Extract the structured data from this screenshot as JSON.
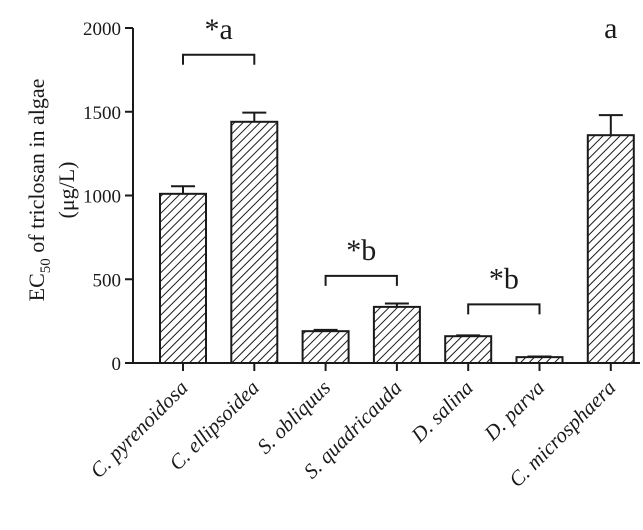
{
  "chart_data": {
    "type": "bar",
    "categories": [
      "C. pyrenoidosa",
      "C. ellipsoidea",
      "S. obliquus",
      "S. quadricauda",
      "D. salina",
      "D. parva",
      "C. microsphaera"
    ],
    "values": [
      1010,
      1440,
      190,
      335,
      160,
      35,
      1360
    ],
    "errors": [
      45,
      55,
      8,
      20,
      5,
      4,
      120
    ],
    "ylabel_line1_prefix": "EC",
    "ylabel_line1_sub": "50",
    "ylabel_line1_suffix": " of triclosan in algae",
    "ylabel_line2": "(μg/L)",
    "ylim": [
      0,
      2000
    ],
    "yticks": [
      "0",
      "500",
      "1000",
      "1500",
      "2000"
    ],
    "annotations": [
      {
        "text": "*a",
        "between": [
          0,
          1
        ],
        "bracket_y": 1840
      },
      {
        "text": "*b",
        "between": [
          2,
          3
        ],
        "bracket_y": 520
      },
      {
        "text": "*b",
        "between": [
          4,
          5
        ],
        "bracket_y": 350
      },
      {
        "text": "a",
        "between": [
          6,
          6
        ],
        "bracket_y": null
      }
    ],
    "grid": false,
    "bar_pattern": "diagonal-hatch",
    "colors": {
      "bar_stroke": "#1a1a1a",
      "axis": "#1a1a1a",
      "fill": "#ffffff"
    }
  }
}
